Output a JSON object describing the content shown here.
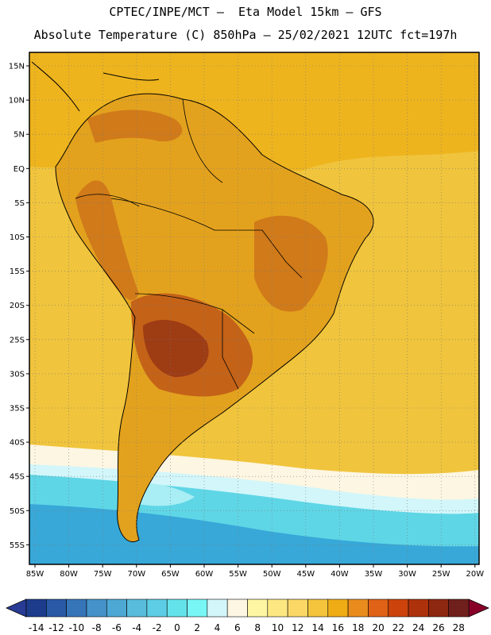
{
  "header": {
    "line1": "CPTEC/INPE/MCT –  Eta Model 15km – GFS",
    "line2": "Absolute Temperature (C) 850hPa – 25/02/2021 12UTC fct=197h"
  },
  "map": {
    "lat_labels": [
      "15N",
      "10N",
      "5N",
      "EQ",
      "5S",
      "10S",
      "15S",
      "20S",
      "25S",
      "30S",
      "35S",
      "40S",
      "45S",
      "50S",
      "55S"
    ],
    "lon_labels": [
      "85W",
      "80W",
      "75W",
      "70W",
      "65W",
      "60W",
      "55W",
      "50W",
      "45W",
      "40W",
      "35W",
      "30W",
      "25W",
      "20W"
    ],
    "field_colors": {
      "ocean_warm": "#f0c43c",
      "land_hot": "#e0a020",
      "hotspot": "#c86418",
      "core": "#9e3c14",
      "cold_water": "#5fd6e6",
      "colder": "#38a8d8"
    }
  },
  "colorbar": {
    "labels": [
      "-14",
      "-12",
      "-10",
      "-8",
      "-6",
      "-4",
      "-2",
      "0",
      "2",
      "4",
      "6",
      "8",
      "10",
      "12",
      "14",
      "16",
      "18",
      "20",
      "22",
      "24",
      "26",
      "28"
    ],
    "colors": [
      "#1e3c8c",
      "#2a5aa6",
      "#3676b8",
      "#4492c8",
      "#4ea8d4",
      "#58bcdc",
      "#5ccde4",
      "#64e2ea",
      "#78f6f6",
      "#d2f6fa",
      "#fdf6e2",
      "#fef6a2",
      "#fde782",
      "#fbd866",
      "#f4c43c",
      "#efac14",
      "#e98c1e",
      "#df6216",
      "#cc440c",
      "#ad320c",
      "#8e2810",
      "#70201c"
    ],
    "left_arrow_color": "#283c96",
    "right_arrow_color": "#880028"
  }
}
